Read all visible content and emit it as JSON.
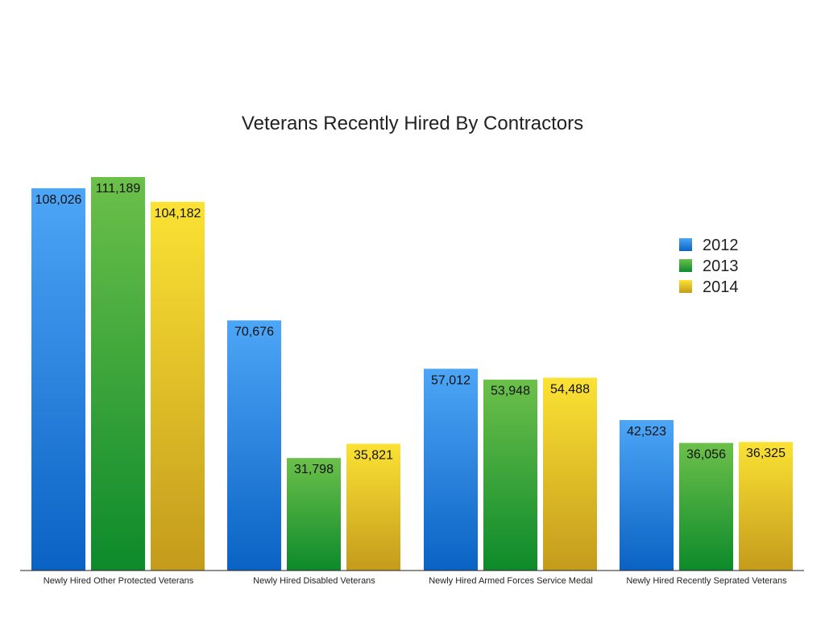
{
  "chart_data": {
    "type": "bar",
    "title": "Veterans Recently Hired By Contractors",
    "categories": [
      "Newly Hired Other Protected Veterans",
      "Newly Hired Disabled Veterans",
      "Newly Hired Armed Forces Service Medal",
      "Newly Hired Recently Seprated Veterans"
    ],
    "series": [
      {
        "name": "2012",
        "values": [
          108026,
          70676,
          57012,
          42523
        ],
        "color": "#1f7fe0"
      },
      {
        "name": "2013",
        "values": [
          111189,
          31798,
          53948,
          36056
        ],
        "color": "#2aa133"
      },
      {
        "name": "2014",
        "values": [
          104182,
          35821,
          54488,
          36325
        ],
        "color": "#e6c21a"
      }
    ],
    "value_labels": [
      [
        "108,026",
        "70,676",
        "57,012",
        "42,523"
      ],
      [
        "111,189",
        "31,798",
        "53,948",
        "36,056"
      ],
      [
        "104,182",
        "35,821",
        "54,488",
        "36,325"
      ]
    ],
    "ylim": [
      0,
      120000
    ],
    "grid": false,
    "legend_position": "right"
  }
}
